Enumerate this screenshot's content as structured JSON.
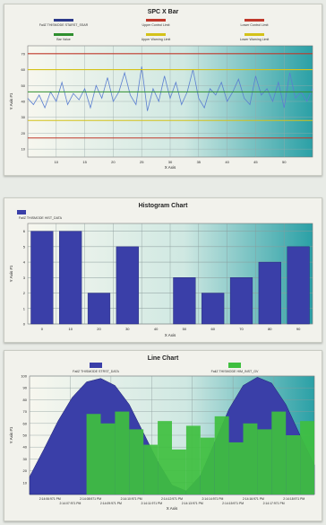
{
  "charts": [
    {
      "title": "SPC X Bar",
      "legend": [
        {
          "label": "FailZ THISMODE STARST_SSAR",
          "color": "#2c3a8a"
        },
        {
          "label": "Upper Control Limit",
          "color": "#c0392b"
        },
        {
          "label": "Lower Control Limit",
          "color": "#c0392b"
        },
        {
          "label": "Bar Value",
          "color": "#2f8f2f"
        },
        {
          "label": "Upper Warning Limit",
          "color": "#d4c21a"
        },
        {
          "label": "Lower Warning Limit",
          "color": "#d4c21a"
        }
      ],
      "ylabel": "Y Axis #1",
      "xlabel": "X Axis",
      "yticks": [
        "10",
        "20",
        "30",
        "40",
        "50",
        "60",
        "70"
      ],
      "xticks": [
        "10",
        "15",
        "20",
        "25",
        "30",
        "35",
        "40",
        "45",
        "50"
      ]
    },
    {
      "title": "Histogram Chart",
      "legend": [
        {
          "label": "FailZ THISMODE HIST_DATA",
          "color": "#3a3fa8"
        }
      ],
      "ylabel": "Y Axis #1",
      "xlabel": "X Axis",
      "yticks": [
        "0",
        "1",
        "2",
        "3",
        "4",
        "5",
        "6"
      ],
      "xticks": [
        "0",
        "10",
        "20",
        "30",
        "40",
        "50",
        "60",
        "70",
        "80",
        "90"
      ]
    },
    {
      "title": "Line Chart",
      "legend": [
        {
          "label": "FailZ THISMODE STRST_DATA",
          "color": "#3a3fa8"
        },
        {
          "label": "FailZ THISMODE HIM_INST_GV",
          "color": "#3fbf3f"
        }
      ],
      "ylabel": "Y Axis #1",
      "xlabel": "X Axis",
      "yticks": [
        "10",
        "20",
        "30",
        "40",
        "50",
        "60",
        "70",
        "80",
        "90",
        "100"
      ],
      "xticks_top": [
        "2:14:06:971 PM",
        "2:14:08:971 PM",
        "2:14:10:971 PM",
        "2:14:12:971 PM",
        "2:14:14:971 PM",
        "2:14:16:971 PM",
        "2:14:18:971 PM"
      ],
      "xticks_bottom": [
        "2:14:07:971 PM",
        "2:14:09:971 PM",
        "2:14:11:971 PM",
        "2:14:13:971 PM",
        "2:14:15:971 PM",
        "2:14:17:971 PM"
      ]
    }
  ],
  "chart_data": [
    {
      "type": "line",
      "title": "SPC X Bar",
      "xlabel": "X Axis",
      "ylabel": "Y Axis #1",
      "xlim": [
        0,
        50
      ],
      "ylim": [
        5,
        75
      ],
      "grid": true,
      "series": [
        {
          "name": "FailZ THISMODE STARST_SSAR",
          "color": "#5b7fd0",
          "x": [
            0,
            1,
            2,
            3,
            4,
            5,
            6,
            7,
            8,
            9,
            10,
            11,
            12,
            13,
            14,
            15,
            16,
            17,
            18,
            19,
            20,
            21,
            22,
            23,
            24,
            25,
            26,
            27,
            28,
            29,
            30,
            31,
            32,
            33,
            34,
            35,
            36,
            37,
            38,
            39,
            40,
            41,
            42,
            43,
            44,
            45,
            46,
            47,
            48,
            49,
            50
          ],
          "y": [
            42,
            38,
            44,
            36,
            46,
            40,
            52,
            38,
            45,
            41,
            48,
            36,
            50,
            42,
            55,
            40,
            46,
            58,
            44,
            38,
            62,
            34,
            48,
            40,
            56,
            42,
            52,
            38,
            46,
            60,
            42,
            36,
            48,
            44,
            52,
            40,
            46,
            54,
            42,
            38,
            56,
            44,
            48,
            40,
            52,
            36,
            58,
            42,
            46,
            40,
            48
          ]
        },
        {
          "name": "Upper Control Limit",
          "color": "#c0392b",
          "x": [
            0,
            50
          ],
          "y": [
            70,
            70
          ]
        },
        {
          "name": "Lower Control Limit",
          "color": "#c0392b",
          "x": [
            0,
            50
          ],
          "y": [
            17,
            17
          ]
        },
        {
          "name": "Bar Value",
          "color": "#2f8f2f",
          "x": [
            0,
            50
          ],
          "y": [
            46,
            46
          ]
        },
        {
          "name": "Upper Warning Limit",
          "color": "#d4c21a",
          "x": [
            0,
            50
          ],
          "y": [
            60,
            60
          ]
        },
        {
          "name": "Lower Warning Limit",
          "color": "#d4c21a",
          "x": [
            0,
            50
          ],
          "y": [
            28,
            28
          ]
        }
      ]
    },
    {
      "type": "bar",
      "title": "Histogram Chart",
      "xlabel": "X Axis",
      "ylabel": "Y Axis #1",
      "categories": [
        "0",
        "10",
        "20",
        "30",
        "40",
        "50",
        "60",
        "70",
        "80",
        "90"
      ],
      "ylim": [
        0,
        6.5
      ],
      "series": [
        {
          "name": "FailZ THISMODE HIST_DATA",
          "color": "#3a3fa8",
          "values": [
            6,
            6,
            2,
            5,
            0,
            3,
            2,
            3,
            4,
            5
          ]
        }
      ]
    },
    {
      "type": "area",
      "title": "Line Chart",
      "xlabel": "X Axis",
      "ylabel": "Y Axis #1",
      "xlim": [
        0,
        100
      ],
      "ylim": [
        0,
        100
      ],
      "series": [
        {
          "name": "FailZ THISMODE STRST_DATA",
          "color": "#3a3fa8",
          "x": [
            0,
            5,
            10,
            15,
            20,
            25,
            30,
            35,
            40,
            45,
            50,
            55,
            60,
            65,
            70,
            75,
            80,
            85,
            90,
            95,
            100
          ],
          "y": [
            15,
            38,
            62,
            82,
            95,
            98,
            92,
            76,
            52,
            28,
            8,
            3,
            16,
            44,
            72,
            92,
            99,
            94,
            76,
            50,
            25
          ]
        },
        {
          "name": "FailZ THISMODE HIM_INST_GV",
          "color": "#3fbf3f",
          "x": [
            0,
            5,
            10,
            15,
            20,
            25,
            30,
            35,
            40,
            45,
            50,
            55,
            60,
            65,
            70,
            75,
            80,
            85,
            90,
            95,
            100
          ],
          "y": [
            0,
            0,
            0,
            0,
            68,
            60,
            70,
            55,
            42,
            62,
            38,
            58,
            48,
            66,
            44,
            60,
            55,
            70,
            50,
            62,
            40
          ]
        }
      ]
    }
  ]
}
